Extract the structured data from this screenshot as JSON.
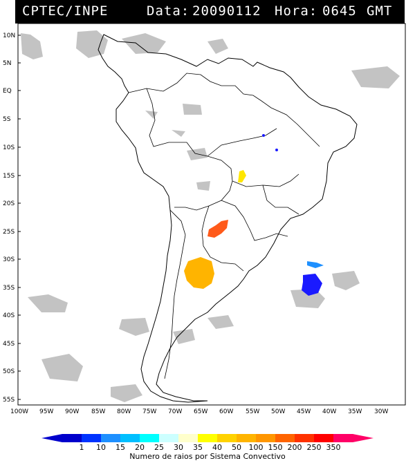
{
  "header": {
    "agency": "CPTEC/INPE",
    "data_label": "Data:",
    "date": "20090112",
    "hora_label": "Hora:",
    "time": "0645",
    "tz": "GMT"
  },
  "map": {
    "lat_labels": [
      "10N",
      "5N",
      "EQ",
      "5S",
      "10S",
      "15S",
      "20S",
      "25S",
      "30S",
      "35S",
      "40S",
      "45S",
      "50S",
      "55S"
    ],
    "lon_labels": [
      "100W",
      "95W",
      "90W",
      "85W",
      "80W",
      "75W",
      "70W",
      "65W",
      "60W",
      "55W",
      "50W",
      "45W",
      "40W",
      "35W",
      "30W"
    ],
    "systems": [
      {
        "id": "paraguay-chaco",
        "value_class": "200",
        "color": "#ff5a1a"
      },
      {
        "id": "central-brazil",
        "value_class": "50",
        "color": "#ffe600"
      },
      {
        "id": "argentina-pampas",
        "value_class": "100",
        "color": "#ffb400"
      },
      {
        "id": "atlantic-south",
        "value_class": "10",
        "color": "#1a1aff"
      },
      {
        "id": "atlantic-north",
        "value_class": "15",
        "color": "#1e90ff"
      },
      {
        "id": "amazon-small-1",
        "value_class": "10",
        "color": "#1a1aff"
      },
      {
        "id": "amazon-small-2",
        "value_class": "10",
        "color": "#1a1aff"
      }
    ]
  },
  "legend": {
    "ticks": [
      "1",
      "10",
      "15",
      "20",
      "25",
      "30",
      "35",
      "40",
      "50",
      "100",
      "150",
      "200",
      "250",
      "350"
    ],
    "colors": [
      "#0000cc",
      "#0033ff",
      "#1e90ff",
      "#00bfff",
      "#00ffff",
      "#ccffff",
      "#ffffcc",
      "#ffff00",
      "#ffd200",
      "#ffb400",
      "#ff9600",
      "#ff6400",
      "#ff3200",
      "#ff0000",
      "#ff0066"
    ],
    "caption": "Numero de raios por Sistema Convectivo"
  }
}
